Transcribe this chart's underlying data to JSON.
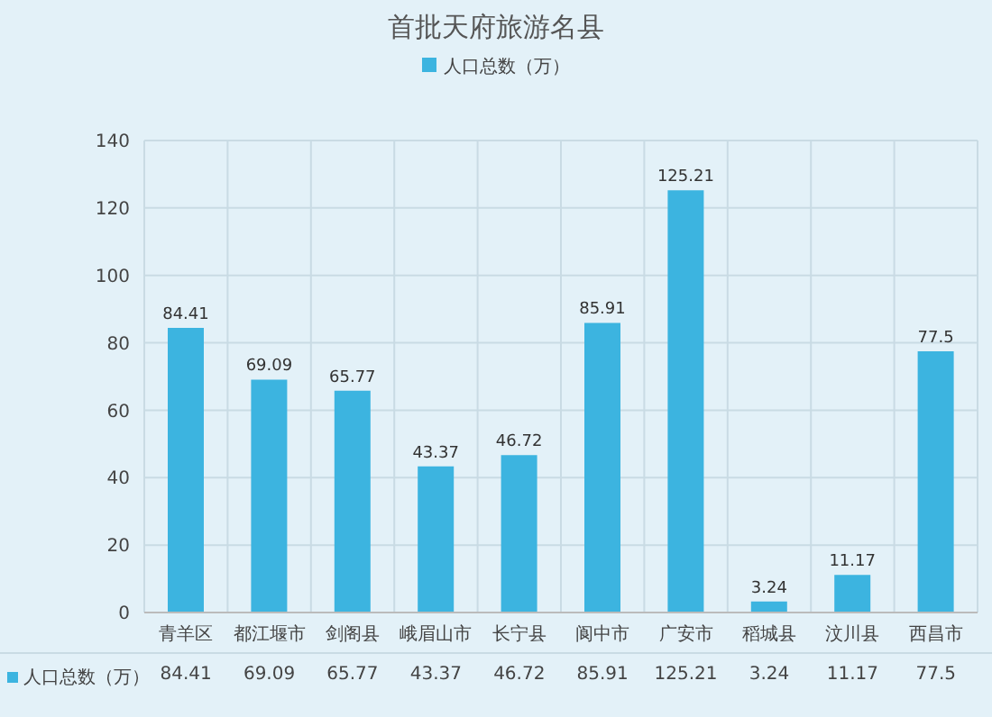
{
  "chart_data": {
    "type": "bar",
    "title": "首批天府旅游名县",
    "categories": [
      "青羊区",
      "都江堰市",
      "剑阁县",
      "峨眉山市",
      "长宁县",
      "阆中市",
      "广安市",
      "稻城县",
      "汶川县",
      "西昌市"
    ],
    "series": [
      {
        "name": "人口总数（万）",
        "color": "#3cb4e0",
        "values": [
          84.41,
          69.09,
          65.77,
          43.37,
          46.72,
          85.91,
          125.21,
          3.24,
          11.17,
          77.5
        ],
        "value_labels": [
          "84.41",
          "69.09",
          "65.77",
          "43.37",
          "46.72",
          "85.91",
          "125.21",
          "3.24",
          "11.17",
          "77.5"
        ]
      }
    ],
    "ylim": [
      0,
      140
    ],
    "yticks": [
      0,
      20,
      40,
      60,
      80,
      100,
      120,
      140
    ],
    "grid": true,
    "legend": "top",
    "annotations": [
      "人口总数（万）",
      "84.41",
      "69.09",
      "65.77",
      "43.37",
      "46.72",
      "85.91",
      "125.21",
      "3.24",
      "11.17",
      "77.5"
    ]
  }
}
